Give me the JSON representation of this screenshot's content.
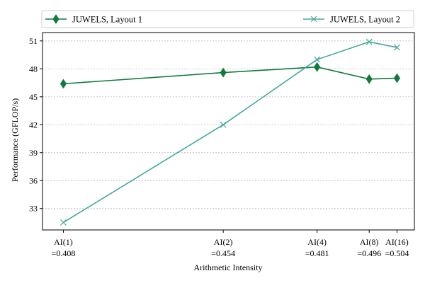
{
  "chart_data": {
    "type": "line",
    "title": "",
    "xlabel": "Arithmetic Intensity",
    "ylabel": "Performance (GFLOP/s)",
    "ylim": [
      30.7,
      51.9
    ],
    "yticks": [
      33,
      36,
      39,
      42,
      45,
      48,
      51
    ],
    "grid": "horizontal",
    "legend_position": "top",
    "x": [
      0.408,
      0.454,
      0.481,
      0.496,
      0.504
    ],
    "xlim": [
      0.402,
      0.509
    ],
    "xtick_labels": [
      {
        "line1": "AI(1)",
        "line2": "=0.408"
      },
      {
        "line1": "AI(2)",
        "line2": "=0.454"
      },
      {
        "line1": "AI(4)",
        "line2": "=0.481"
      },
      {
        "line1": "AI(8)",
        "line2": "=0.496"
      },
      {
        "line1": "AI(16)",
        "line2": "=0.504"
      }
    ],
    "series": [
      {
        "name": "JUWELS, Layout 1",
        "marker": "diamond",
        "color": "#107a3a",
        "values": [
          46.4,
          47.6,
          48.2,
          46.9,
          47.0
        ]
      },
      {
        "name": "JUWELS, Layout 2",
        "marker": "x",
        "color": "#44a89a",
        "values": [
          31.5,
          42.0,
          49.0,
          50.9,
          50.3
        ]
      }
    ]
  }
}
